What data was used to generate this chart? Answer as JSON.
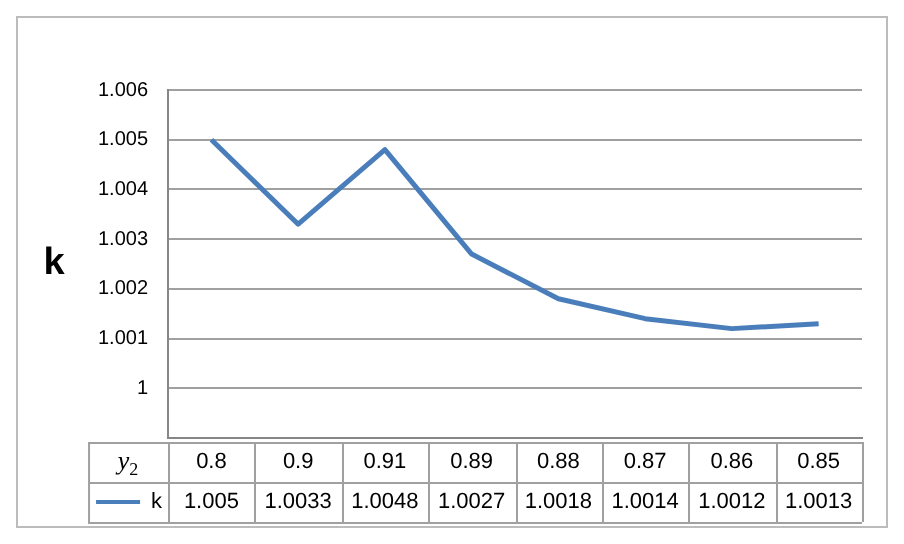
{
  "chart_data": {
    "type": "line",
    "xlabel": "y$_{2}$",
    "ylabel": "k",
    "categories": [
      "0.8",
      "0.9",
      "0.91",
      "0.89",
      "0.88",
      "0.87",
      "0.86",
      "0.85"
    ],
    "series": [
      {
        "name": "k",
        "color": "#4a7ebb",
        "values": [
          1.005,
          1.0033,
          1.0048,
          1.0027,
          1.0018,
          1.0014,
          1.0012,
          1.0013
        ]
      }
    ],
    "ylim": [
      0.999,
      1.006
    ],
    "yticks": [
      1,
      1.001,
      1.002,
      1.003,
      1.004,
      1.005,
      1.006
    ],
    "grid": "y",
    "legend": "bottom",
    "data_labels": true,
    "marker": "none",
    "line_style": "solid"
  }
}
